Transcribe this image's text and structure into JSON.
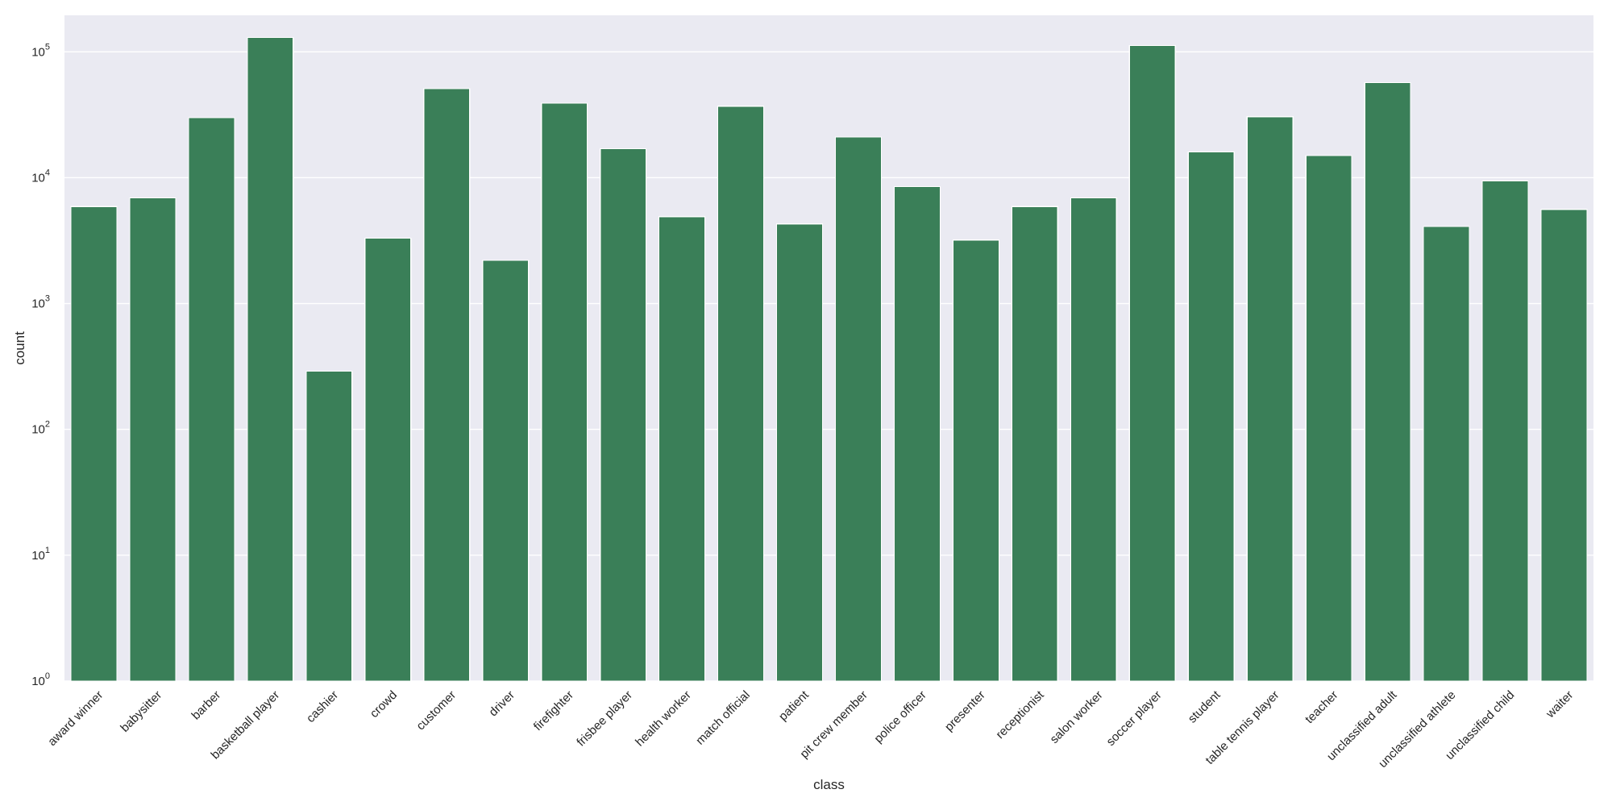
{
  "chart_data": {
    "type": "bar",
    "title": "",
    "xlabel": "class",
    "ylabel": "count",
    "yscale": "log",
    "ylim": [
      1,
      200000
    ],
    "yticks": [
      {
        "value": 1,
        "base": "10",
        "exp": "0"
      },
      {
        "value": 10,
        "base": "10",
        "exp": "1"
      },
      {
        "value": 100,
        "base": "10",
        "exp": "2"
      },
      {
        "value": 1000,
        "base": "10",
        "exp": "3"
      },
      {
        "value": 10000,
        "base": "10",
        "exp": "4"
      },
      {
        "value": 100000,
        "base": "10",
        "exp": "5"
      }
    ],
    "grid": true,
    "background_color": "#eaeaf2",
    "bar_color": "#3a7f58",
    "categories": [
      "award winner",
      "babysitter",
      "barber",
      "basketball player",
      "cashier",
      "crowd",
      "customer",
      "driver",
      "firefighter",
      "frisbee player",
      "health worker",
      "match official",
      "patient",
      "pit crew member",
      "police officer",
      "presenter",
      "receptionist",
      "salon worker",
      "soccer player",
      "student",
      "table tennis player",
      "teacher",
      "unclassified adult",
      "unclassified athlete",
      "unclassified child",
      "waiter"
    ],
    "values": [
      5900,
      6900,
      30000,
      130000,
      290,
      3300,
      51000,
      2200,
      39000,
      17000,
      4900,
      37000,
      4300,
      21000,
      8500,
      3200,
      5900,
      6900,
      112000,
      16000,
      30500,
      15000,
      57000,
      4100,
      9400,
      5600
    ]
  }
}
